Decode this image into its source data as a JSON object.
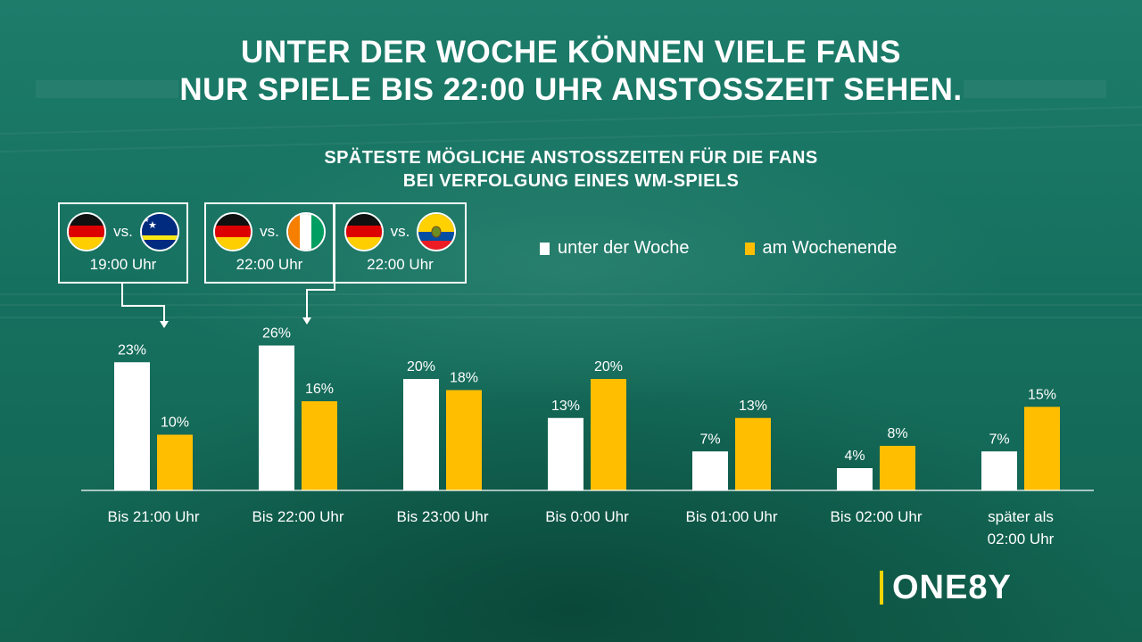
{
  "title_line1": "UNTER DER WOCHE KÖNNEN VIELE FANS",
  "title_line2": "NUR SPIELE BIS 22:00 UHR ANSTOSSZEIT SEHEN.",
  "chart_title_line1": "SPÄTESTE MÖGLICHE ANSTOSSZEITEN FÜR DIE FANS",
  "chart_title_line2": "BEI VERFOLGUNG EINES WM-SPIELS",
  "matches": [
    {
      "home_flag": "germany-flag-icon",
      "away_flag": "curacao-flag-icon",
      "vs": "vs.",
      "time": "19:00 Uhr"
    },
    {
      "home_flag": "germany-flag-icon",
      "away_flag": "ivory-coast-flag-icon",
      "vs": "vs.",
      "time": "22:00 Uhr"
    },
    {
      "home_flag": "germany-flag-icon",
      "away_flag": "ecuador-flag-icon",
      "vs": "vs.",
      "time": "22:00 Uhr"
    }
  ],
  "legend": {
    "weekday": "unter der Woche",
    "weekend": "am Wochenende"
  },
  "colors": {
    "weekday": "#ffffff",
    "weekend": "#ffbe00",
    "logo_accent": "#f4d400"
  },
  "logo": "ONE8Y",
  "chart_data": {
    "type": "bar",
    "categories": [
      [
        "Bis 21:00 Uhr"
      ],
      [
        "Bis 22:00 Uhr"
      ],
      [
        "Bis 23:00 Uhr"
      ],
      [
        "Bis 0:00 Uhr"
      ],
      [
        "Bis 01:00 Uhr"
      ],
      [
        "Bis 02:00 Uhr"
      ],
      [
        "später als",
        "02:00 Uhr"
      ]
    ],
    "series": [
      {
        "name": "unter der Woche",
        "values": [
          23,
          26,
          20,
          13,
          7,
          4,
          7
        ]
      },
      {
        "name": "am Wochenende",
        "values": [
          10,
          16,
          18,
          20,
          13,
          8,
          15
        ]
      }
    ],
    "value_suffix": "%",
    "ylim": [
      0,
      26
    ],
    "grid": false,
    "legend_position": "top-right",
    "title": "SPÄTESTE MÖGLICHE ANSTOSSZEITEN FÜR DIE FANS BEI VERFOLGUNG EINES WM-SPIELS"
  }
}
